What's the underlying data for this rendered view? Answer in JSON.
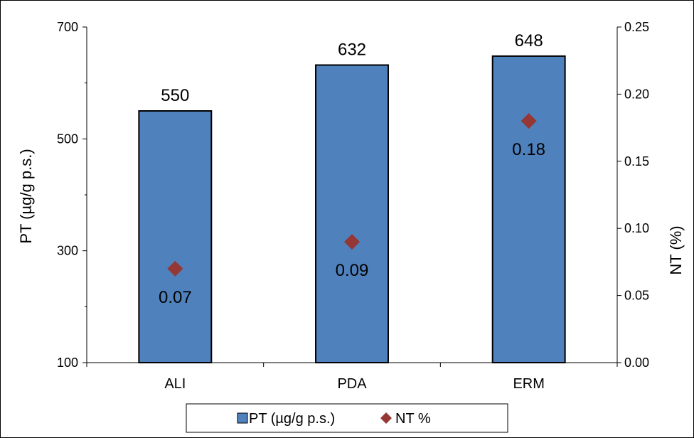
{
  "chart_data": {
    "type": "bar",
    "categories": [
      "ALI",
      "PDA",
      "ERM"
    ],
    "series": [
      {
        "name": "PT (µg/g p.s.)",
        "type": "bar",
        "axis": "left",
        "values": [
          550,
          632,
          648
        ],
        "labels": [
          "550",
          "632",
          "648"
        ],
        "color": "#4F81BD"
      },
      {
        "name": "NT %",
        "type": "scatter",
        "axis": "right",
        "values": [
          0.07,
          0.09,
          0.18
        ],
        "labels": [
          "0.07",
          "0.09",
          "0.18"
        ],
        "color": "#953735"
      }
    ],
    "ylabel": "PT (µg/g p.s.)",
    "ylabel_right": "NT (%)",
    "ylim": [
      100,
      700
    ],
    "ylim_right": [
      0.0,
      0.25
    ],
    "yticks": [
      100,
      300,
      500,
      700
    ],
    "yticks_right": [
      "0.00",
      "0.05",
      "0.10",
      "0.15",
      "0.20",
      "0.25"
    ],
    "grid": false,
    "legend": "bottom"
  }
}
